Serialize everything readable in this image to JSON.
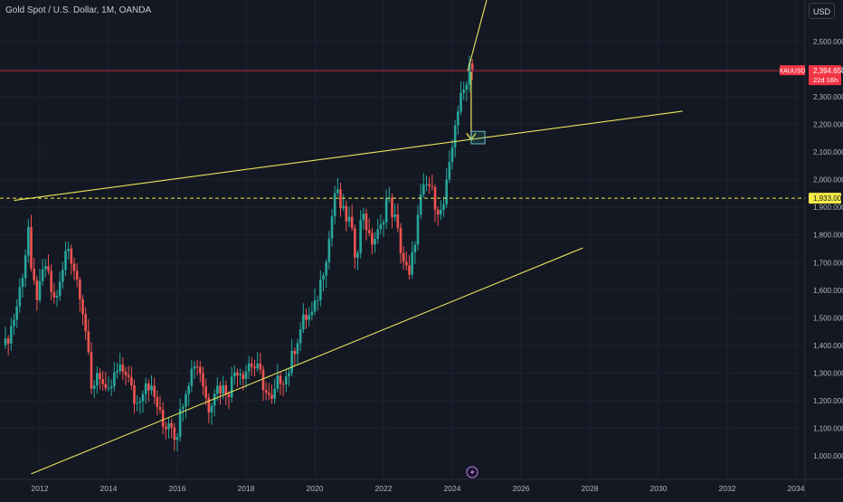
{
  "header": {
    "title": "Gold Spot / U.S. Dollar, 1M, OANDA",
    "currency": "USD"
  },
  "colors": {
    "background": "#141823",
    "grid": "#1e2230",
    "up": "#26a69a",
    "down": "#ef5350",
    "trendline": "#e9e65a",
    "axis_text": "#b2b5be",
    "price_tag": "#f23645",
    "level_tag": "#f5e94a"
  },
  "chart_data": {
    "type": "candlestick",
    "title": "Gold Spot / U.S. Dollar, 1M, OANDA",
    "symbol": "XAUUSD",
    "ylim": [
      950,
      2620
    ],
    "y_ticks": [
      1000,
      1100,
      1200,
      1300,
      1400,
      1500,
      1600,
      1700,
      1800,
      1900,
      2000,
      2100,
      2200,
      2300,
      2400,
      2500
    ],
    "y_tick_labels": [
      "1,000.000",
      "1,100.000",
      "1,200.000",
      "1,300.000",
      "1,400.000",
      "1,500.000",
      "1,600.000",
      "1,700.000",
      "1,800.000",
      "1,900.000",
      "2,000.000",
      "2,100.000",
      "2,200.000",
      "2,300.000",
      "2,400.000",
      "2,500.000"
    ],
    "xlim": [
      2011.0,
      2034.0
    ],
    "x_ticks": [
      2012,
      2014,
      2016,
      2018,
      2020,
      2022,
      2024,
      2026,
      2028,
      2030,
      2032,
      2034
    ],
    "x_tick_labels": [
      "2012",
      "2014",
      "2016",
      "2018",
      "2020",
      "2022",
      "2024",
      "2026",
      "2028",
      "2030",
      "2032",
      "2034"
    ],
    "grid": true,
    "current_price": {
      "label": "XAUUSD",
      "value": 2394.65,
      "value_label": "2,394.650",
      "countdown": "22d 16h"
    },
    "horizontal_level": {
      "value": 1933.0,
      "label": "1,933.000",
      "style": "dashed"
    },
    "close_series": [
      {
        "t": 2011.0,
        "c": 1400
      },
      {
        "t": 2011.3,
        "c": 1520
      },
      {
        "t": 2011.55,
        "c": 1700
      },
      {
        "t": 2011.67,
        "c": 1830
      },
      {
        "t": 2011.75,
        "c": 1650
      },
      {
        "t": 2011.95,
        "c": 1570
      },
      {
        "t": 2012.15,
        "c": 1700
      },
      {
        "t": 2012.4,
        "c": 1560
      },
      {
        "t": 2012.6,
        "c": 1620
      },
      {
        "t": 2012.8,
        "c": 1770
      },
      {
        "t": 2013.0,
        "c": 1680
      },
      {
        "t": 2013.2,
        "c": 1580
      },
      {
        "t": 2013.35,
        "c": 1440
      },
      {
        "t": 2013.5,
        "c": 1230
      },
      {
        "t": 2013.7,
        "c": 1320
      },
      {
        "t": 2013.95,
        "c": 1200
      },
      {
        "t": 2014.2,
        "c": 1300
      },
      {
        "t": 2014.5,
        "c": 1310
      },
      {
        "t": 2014.8,
        "c": 1180
      },
      {
        "t": 2015.1,
        "c": 1280
      },
      {
        "t": 2015.4,
        "c": 1190
      },
      {
        "t": 2015.6,
        "c": 1100
      },
      {
        "t": 2015.8,
        "c": 1140
      },
      {
        "t": 2015.95,
        "c": 1060
      },
      {
        "t": 2016.2,
        "c": 1230
      },
      {
        "t": 2016.5,
        "c": 1340
      },
      {
        "t": 2016.65,
        "c": 1320
      },
      {
        "t": 2016.9,
        "c": 1170
      },
      {
        "t": 2017.1,
        "c": 1250
      },
      {
        "t": 2017.5,
        "c": 1240
      },
      {
        "t": 2017.7,
        "c": 1320
      },
      {
        "t": 2017.95,
        "c": 1300
      },
      {
        "t": 2018.1,
        "c": 1340
      },
      {
        "t": 2018.4,
        "c": 1300
      },
      {
        "t": 2018.6,
        "c": 1220
      },
      {
        "t": 2018.75,
        "c": 1190
      },
      {
        "t": 2018.95,
        "c": 1280
      },
      {
        "t": 2019.2,
        "c": 1290
      },
      {
        "t": 2019.45,
        "c": 1410
      },
      {
        "t": 2019.7,
        "c": 1500
      },
      {
        "t": 2019.95,
        "c": 1510
      },
      {
        "t": 2020.1,
        "c": 1590
      },
      {
        "t": 2020.25,
        "c": 1680
      },
      {
        "t": 2020.4,
        "c": 1770
      },
      {
        "t": 2020.6,
        "c": 1970
      },
      {
        "t": 2020.8,
        "c": 1880
      },
      {
        "t": 2021.0,
        "c": 1850
      },
      {
        "t": 2021.2,
        "c": 1720
      },
      {
        "t": 2021.4,
        "c": 1900
      },
      {
        "t": 2021.6,
        "c": 1770
      },
      {
        "t": 2021.9,
        "c": 1810
      },
      {
        "t": 2022.1,
        "c": 1940
      },
      {
        "t": 2022.35,
        "c": 1850
      },
      {
        "t": 2022.55,
        "c": 1720
      },
      {
        "t": 2022.75,
        "c": 1640
      },
      {
        "t": 2022.95,
        "c": 1820
      },
      {
        "t": 2023.1,
        "c": 1940
      },
      {
        "t": 2023.3,
        "c": 1990
      },
      {
        "t": 2023.5,
        "c": 1920
      },
      {
        "t": 2023.7,
        "c": 1870
      },
      {
        "t": 2023.85,
        "c": 1990
      },
      {
        "t": 2023.95,
        "c": 2060
      },
      {
        "t": 2024.1,
        "c": 2230
      },
      {
        "t": 2024.25,
        "c": 2290
      },
      {
        "t": 2024.35,
        "c": 2330
      },
      {
        "t": 2024.5,
        "c": 2420
      },
      {
        "t": 2024.6,
        "c": 2394.65
      }
    ],
    "drawings": [
      {
        "name": "upper-trendline",
        "p1": {
          "t": 2011.25,
          "c": 1925
        },
        "p2": {
          "t": 2030.7,
          "c": 2248
        }
      },
      {
        "name": "lower-trendline",
        "p1": {
          "t": 2011.75,
          "c": 935
        },
        "p2": {
          "t": 2027.8,
          "c": 1753
        }
      },
      {
        "name": "steep-trendline",
        "p1": {
          "t": 2024.45,
          "c": 2394
        },
        "p2": {
          "t": 2025.0,
          "c": 2650
        }
      },
      {
        "name": "projection-arrow",
        "p1": {
          "t": 2024.55,
          "c": 2390
        },
        "p2": {
          "t": 2024.55,
          "c": 2145
        }
      },
      {
        "name": "target-box",
        "p1": {
          "t": 2024.55,
          "c": 2175
        },
        "p2": {
          "t": 2024.95,
          "c": 2130
        }
      }
    ]
  }
}
